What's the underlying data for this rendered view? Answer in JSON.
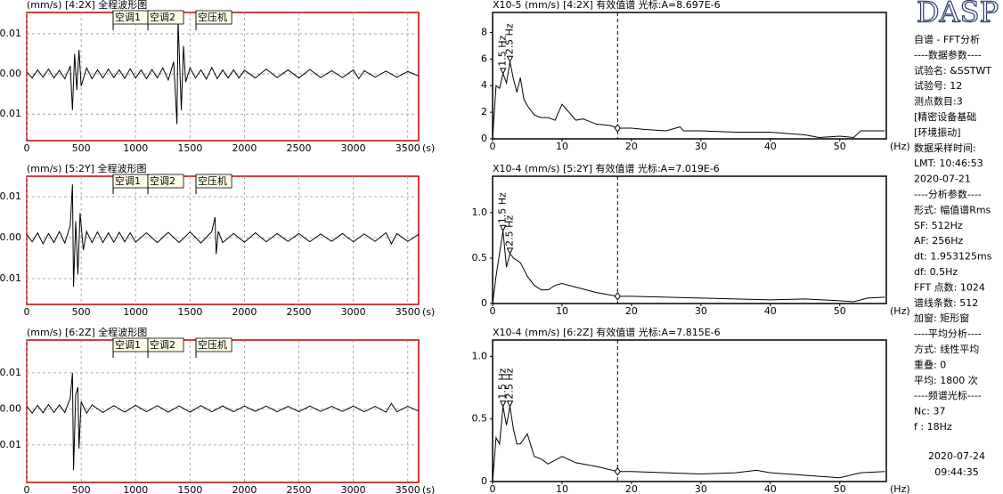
{
  "chart_data": [
    {
      "type": "line",
      "title": "(mm/s) [4:2X] 全程波形图",
      "xlabel": "(s)",
      "grid": true,
      "frame_color": "#c00000",
      "xlim": [
        0,
        3600
      ],
      "xticks": [
        0,
        500,
        1000,
        1500,
        2000,
        2500,
        3000,
        3500
      ],
      "ylim": [
        -0.0166,
        0.0153
      ],
      "yticks": [
        0.01,
        {
          "value": 0,
          "label": "0.00"
        },
        -0.01
      ],
      "annotations": [
        {
          "text": "空调1",
          "x": 794
        },
        {
          "text": "空调2",
          "x": 1113
        },
        {
          "text": "空压机",
          "x": 1555
        }
      ],
      "x": [
        0,
        50,
        100,
        150,
        200,
        250,
        300,
        350,
        400,
        420,
        440,
        460,
        480,
        500,
        550,
        600,
        650,
        700,
        750,
        800,
        850,
        900,
        950,
        1000,
        1050,
        1100,
        1150,
        1200,
        1250,
        1300,
        1350,
        1380,
        1390,
        1420,
        1440,
        1460,
        1500,
        1550,
        1600,
        1650,
        1700,
        1750,
        1800,
        1850,
        1900,
        1950,
        2000,
        2100,
        2200,
        2300,
        2400,
        2500,
        2600,
        2700,
        2800,
        2900,
        3000,
        3050,
        3100,
        3200,
        3300,
        3400,
        3500,
        3600
      ],
      "series": [
        {
          "color": "#000000",
          "values": [
            0.0005,
            -0.001,
            0.001,
            -0.0008,
            0.0012,
            -0.001,
            0.0009,
            -0.0012,
            0.002,
            -0.009,
            0.005,
            -0.004,
            0.006,
            -0.003,
            0.0015,
            -0.0012,
            0.001,
            -0.001,
            0.0012,
            -0.0009,
            0.001,
            -0.0011,
            0.0013,
            -0.001,
            0.001,
            -0.0012,
            0.0011,
            -0.001,
            0.0015,
            -0.0015,
            0.003,
            -0.0125,
            0.0135,
            -0.009,
            0.007,
            -0.002,
            0.0015,
            -0.001,
            0.001,
            -0.0013,
            0.0016,
            -0.0012,
            0.001,
            -0.001,
            0.001,
            -0.001,
            0.0009,
            -0.001,
            0.0012,
            -0.0009,
            0.001,
            -0.001,
            0.0011,
            -0.0009,
            0.0008,
            -0.0009,
            0.001,
            -0.0012,
            0.0008,
            -0.0008,
            0.0007,
            -0.0008,
            0.0006,
            -0.0005
          ]
        }
      ]
    },
    {
      "type": "line",
      "title": "X10-5 (mm/s) [4:2X] 有效值谱 光标:A=8.697E-6",
      "xlabel": "(Hz)",
      "grid": false,
      "frame_color": "#000000",
      "xlim": [
        0,
        56.7
      ],
      "xticks": [
        0,
        10,
        20,
        30,
        40,
        50
      ],
      "ylim": [
        0,
        9.5
      ],
      "yticks": [
        0,
        2,
        4,
        6,
        8
      ],
      "cursor_x": 18,
      "peak_labels": [
        {
          "text": "1.5 Hz",
          "x": 1.5,
          "y": 4.9
        },
        {
          "text": "2.5 Hz",
          "x": 2.5,
          "y": 5.8
        }
      ],
      "x": [
        0,
        0.5,
        1,
        1.5,
        2,
        2.5,
        3,
        3.5,
        4,
        4.5,
        5,
        6,
        7,
        8,
        9,
        10,
        11,
        12,
        13,
        14,
        15,
        17,
        18,
        20,
        22,
        25,
        27,
        27.5,
        30,
        35,
        40,
        45,
        47,
        50,
        52,
        53,
        56.5
      ],
      "series": [
        {
          "color": "#000000",
          "values": [
            0,
            4,
            3.8,
            4.9,
            4.2,
            5.8,
            4.5,
            3.5,
            4.6,
            3,
            2.5,
            1.8,
            1.6,
            1.6,
            1.4,
            2.6,
            2,
            1.4,
            1.5,
            1.3,
            1.1,
            1,
            0.8,
            0.8,
            0.7,
            0.6,
            0.9,
            0.6,
            0.6,
            0.5,
            0.5,
            0.3,
            0.1,
            0.2,
            0.1,
            0.6,
            0.6
          ]
        }
      ]
    },
    {
      "type": "line",
      "title": "(mm/s) [5:2Y] 全程波形图",
      "xlabel": "(s)",
      "grid": true,
      "frame_color": "#c00000",
      "xlim": [
        0,
        3600
      ],
      "xticks": [
        0,
        500,
        1000,
        1500,
        2000,
        2500,
        3000,
        3500
      ],
      "ylim": [
        -0.0163,
        0.015
      ],
      "yticks": [
        0.01,
        {
          "value": 0,
          "label": "0.00"
        },
        -0.01
      ],
      "annotations": [
        {
          "text": "空调1",
          "x": 794
        },
        {
          "text": "空调2",
          "x": 1113
        },
        {
          "text": "空压机",
          "x": 1555
        }
      ],
      "x": [
        0,
        50,
        100,
        150,
        200,
        250,
        300,
        350,
        400,
        420,
        430,
        450,
        470,
        490,
        520,
        550,
        600,
        650,
        700,
        750,
        800,
        850,
        900,
        950,
        1000,
        1100,
        1200,
        1300,
        1400,
        1500,
        1600,
        1700,
        1730,
        1740,
        1760,
        1800,
        1900,
        2000,
        2100,
        2200,
        2300,
        2400,
        2500,
        2600,
        2700,
        2800,
        2900,
        3000,
        3100,
        3200,
        3300,
        3350,
        3400,
        3500,
        3600
      ],
      "series": [
        {
          "color": "#000000",
          "values": [
            0.0008,
            -0.001,
            0.0012,
            -0.0015,
            0.001,
            -0.0012,
            0.0015,
            -0.0013,
            0.003,
            0.013,
            -0.012,
            0.004,
            -0.009,
            0.006,
            -0.003,
            0.0015,
            -0.0012,
            0.0014,
            -0.0012,
            0.0012,
            -0.0011,
            0.0013,
            -0.001,
            0.0012,
            -0.0011,
            0.0012,
            -0.0012,
            0.0013,
            -0.0012,
            0.0014,
            -0.0013,
            0.0015,
            0.005,
            -0.004,
            0.0015,
            -0.0012,
            0.001,
            -0.0011,
            0.0012,
            -0.001,
            0.001,
            -0.0009,
            0.001,
            -0.001,
            0.0009,
            -0.0009,
            0.001,
            -0.001,
            0.0009,
            -0.0009,
            0.0012,
            -0.0015,
            0.001,
            -0.0009,
            0.0008
          ]
        }
      ]
    },
    {
      "type": "line",
      "title": "X10-4 (mm/s) [5:2Y] 有效值谱 光标:A=7.019E-6",
      "xlabel": "(Hz)",
      "grid": false,
      "frame_color": "#000000",
      "xlim": [
        0,
        56.7
      ],
      "xticks": [
        0,
        10,
        20,
        30,
        40,
        50
      ],
      "ylim": [
        0,
        1.4
      ],
      "yticks": [
        0,
        0.5,
        {
          "value": 1,
          "label": "1.0"
        }
      ],
      "cursor_x": 18,
      "peak_labels": [
        {
          "text": "1.5 Hz",
          "x": 1.5,
          "y": 0.8
        },
        {
          "text": "2.5 Hz",
          "x": 2.5,
          "y": 0.55
        }
      ],
      "x": [
        0,
        0.5,
        1,
        1.5,
        2,
        2.5,
        3,
        4,
        5,
        6,
        7,
        8,
        9,
        10,
        12,
        15,
        18,
        20,
        25,
        30,
        35,
        40,
        45,
        50,
        52,
        54,
        56.5
      ],
      "series": [
        {
          "color": "#000000",
          "values": [
            0,
            0.3,
            0.55,
            0.8,
            0.4,
            0.55,
            0.5,
            0.45,
            0.3,
            0.2,
            0.15,
            0.15,
            0.2,
            0.22,
            0.18,
            0.12,
            0.08,
            0.08,
            0.07,
            0.06,
            0.05,
            0.04,
            0.05,
            0.03,
            0.02,
            0.06,
            0.07
          ]
        }
      ]
    },
    {
      "type": "line",
      "title": "(mm/s) [6:2Z] 全程波形图",
      "xlabel": "(s)",
      "grid": true,
      "frame_color": "#c00000",
      "xlim": [
        0,
        3600
      ],
      "xticks": [
        0,
        500,
        1000,
        1500,
        2000,
        2500,
        3000,
        3500
      ],
      "ylim": [
        -0.0204,
        0.0191
      ],
      "yticks": [
        0.01,
        {
          "value": 0,
          "label": "0.00"
        },
        -0.01
      ],
      "annotations": [
        {
          "text": "空调1",
          "x": 794
        },
        {
          "text": "空调2",
          "x": 1113
        },
        {
          "text": "空压机",
          "x": 1555
        }
      ],
      "x": [
        0,
        50,
        100,
        150,
        200,
        250,
        300,
        350,
        400,
        420,
        430,
        450,
        470,
        480,
        500,
        550,
        600,
        700,
        800,
        900,
        1000,
        1100,
        1200,
        1300,
        1400,
        1500,
        1600,
        1700,
        1800,
        1900,
        2000,
        2100,
        2200,
        2300,
        2400,
        2500,
        2600,
        2700,
        2800,
        2900,
        3000,
        3100,
        3200,
        3300,
        3350,
        3400,
        3500,
        3600
      ],
      "series": [
        {
          "color": "#000000",
          "values": [
            0.0008,
            -0.0012,
            0.001,
            -0.0011,
            0.0012,
            -0.001,
            0.0011,
            -0.001,
            0.003,
            0.01,
            -0.017,
            0.004,
            0.006,
            -0.011,
            0.002,
            -0.0012,
            0.0011,
            -0.001,
            0.0009,
            -0.0009,
            0.001,
            -0.0008,
            0.0009,
            -0.0009,
            0.0008,
            -0.0009,
            0.0009,
            -0.0008,
            0.0008,
            -0.0008,
            0.0008,
            -0.0007,
            0.0008,
            -0.0008,
            0.0007,
            -0.0008,
            0.0008,
            -0.0007,
            0.0007,
            -0.0007,
            0.0008,
            -0.0008,
            0.0007,
            -0.0009,
            0.0015,
            -0.0008,
            0.0007,
            -0.0006
          ]
        }
      ]
    },
    {
      "type": "line",
      "title": "X10-4 (mm/s) [6:2Z] 有效值谱 光标:A=7.815E-6",
      "xlabel": "(Hz)",
      "grid": false,
      "frame_color": "#000000",
      "xlim": [
        0,
        56.7
      ],
      "xticks": [
        0,
        10,
        20,
        30,
        40,
        50
      ],
      "ylim": [
        0,
        1.13
      ],
      "yticks": [
        0,
        0.5,
        {
          "value": 1,
          "label": "1.0"
        }
      ],
      "cursor_x": 18,
      "peak_labels": [
        {
          "text": "1.5 Hz",
          "x": 1.5,
          "y": 0.6
        },
        {
          "text": "2.5 Hz",
          "x": 2.5,
          "y": 0.6
        }
      ],
      "x": [
        0,
        0.5,
        1,
        1.5,
        2,
        2.5,
        3,
        3.5,
        4,
        5,
        6,
        7,
        8,
        10,
        12,
        15,
        18,
        20,
        25,
        30,
        35,
        38,
        40,
        45,
        50,
        53,
        56.5
      ],
      "series": [
        {
          "color": "#000000",
          "values": [
            0,
            0.35,
            0.3,
            0.6,
            0.45,
            0.6,
            0.42,
            0.3,
            0.3,
            0.38,
            0.2,
            0.18,
            0.14,
            0.2,
            0.15,
            0.12,
            0.08,
            0.08,
            0.07,
            0.06,
            0.07,
            0.09,
            0.07,
            0.05,
            0.03,
            0.07,
            0.08
          ]
        }
      ]
    }
  ],
  "side_panel": {
    "logo": "DASP",
    "lines": [
      "自谱 - FFT分析",
      "----数据参数----",
      "试验名: &SSTWT",
      "试验号: 12",
      "测点数目:3",
      "[精密设备基础",
      "[环境振动]",
      "数据采样时间:",
      "LMT: 10:46:53",
      "2020-07-21",
      "----分析参数----",
      "形式: 幅值谱Rms",
      "SF: 512Hz",
      "AF: 256Hz",
      "dt: 1.953125ms",
      "df: 0.5Hz",
      "FFT 点数: 1024",
      "谱线条数: 512",
      "加窗: 矩形窗",
      "----平均分析----",
      "方式: 线性平均",
      "重叠: 0",
      "平均: 1800 次",
      "----频谱光标----",
      "Nc: 37",
      "f : 18Hz"
    ],
    "footer": [
      "2020-07-24",
      "09:44:35"
    ]
  }
}
